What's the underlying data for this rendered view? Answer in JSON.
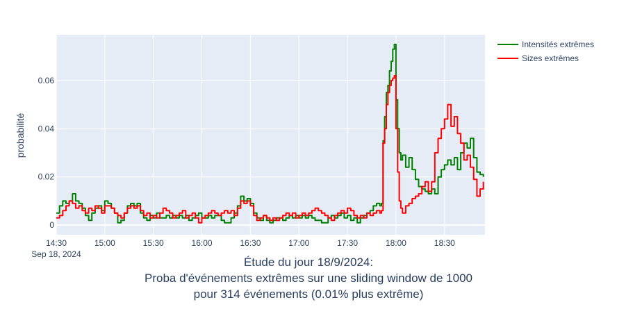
{
  "chart_data": {
    "type": "line",
    "line_shape": "step",
    "title_lines": [
      "Étude du jour 18/9/2024:",
      "Proba d'événements extrêmes sur une sliding window de 1000",
      "pour 314 événements (0.01% plus extrême)"
    ],
    "xlabel": "",
    "ylabel": "probabilité",
    "x_ticks": [
      {
        "x": "14:30",
        "label": "14:30"
      },
      {
        "x": "15:00",
        "label": "15:00"
      },
      {
        "x": "15:30",
        "label": "15:30"
      },
      {
        "x": "16:00",
        "label": "16:00"
      },
      {
        "x": "16:30",
        "label": "16:30"
      },
      {
        "x": "17:00",
        "label": "17:00"
      },
      {
        "x": "17:30",
        "label": "17:30"
      },
      {
        "x": "18:00",
        "label": "18:00"
      },
      {
        "x": "18:30",
        "label": "18:30"
      }
    ],
    "x_subtitle": "Sep 18, 2024",
    "xlim": [
      "14:30",
      "18:55"
    ],
    "y_ticks": [
      {
        "y": 0,
        "label": "0"
      },
      {
        "y": 0.02,
        "label": "0.02"
      },
      {
        "y": 0.04,
        "label": "0.04"
      },
      {
        "y": 0.06,
        "label": "0.06"
      }
    ],
    "ylim": [
      -0.004,
      0.079
    ],
    "grid": true,
    "legend_position": "top-right",
    "series": [
      {
        "name": "Intensités extrêmes",
        "color": "#008000",
        "points": [
          [
            "14:30",
            0.005
          ],
          [
            "14:32",
            0.008
          ],
          [
            "14:34",
            0.01
          ],
          [
            "14:36",
            0.009
          ],
          [
            "14:38",
            0.01
          ],
          [
            "14:40",
            0.013
          ],
          [
            "14:42",
            0.01
          ],
          [
            "14:44",
            0.009
          ],
          [
            "14:46",
            0.007
          ],
          [
            "14:48",
            0.004
          ],
          [
            "14:50",
            0.002
          ],
          [
            "14:52",
            0.005
          ],
          [
            "14:54",
            0.007
          ],
          [
            "14:56",
            0.008
          ],
          [
            "14:58",
            0.006
          ],
          [
            "15:00",
            0.01
          ],
          [
            "15:02",
            0.009
          ],
          [
            "15:04",
            0.007
          ],
          [
            "15:06",
            0.005
          ],
          [
            "15:08",
            0.001
          ],
          [
            "15:10",
            0.002
          ],
          [
            "15:12",
            0.005
          ],
          [
            "15:14",
            0.008
          ],
          [
            "15:16",
            0.009
          ],
          [
            "15:18",
            0.008
          ],
          [
            "15:20",
            0.009
          ],
          [
            "15:22",
            0.005
          ],
          [
            "15:24",
            0.003
          ],
          [
            "15:26",
            0.002
          ],
          [
            "15:28",
            0.004
          ],
          [
            "15:30",
            0.003
          ],
          [
            "15:32",
            0.005
          ],
          [
            "15:34",
            0.003
          ],
          [
            "15:36",
            0.003
          ],
          [
            "15:38",
            0.004
          ],
          [
            "15:40",
            0.003
          ],
          [
            "15:42",
            0.004
          ],
          [
            "15:44",
            0.003
          ],
          [
            "15:46",
            0.004
          ],
          [
            "15:48",
            0.003
          ],
          [
            "15:50",
            0.004
          ],
          [
            "15:52",
            0.002
          ],
          [
            "15:54",
            0.003
          ],
          [
            "15:56",
            0.004
          ],
          [
            "15:58",
            0.005
          ],
          [
            "16:00",
            0.003
          ],
          [
            "16:02",
            0.003
          ],
          [
            "16:04",
            0.004
          ],
          [
            "16:06",
            0.003
          ],
          [
            "16:08",
            0.004
          ],
          [
            "16:10",
            0.004
          ],
          [
            "16:12",
            0.002
          ],
          [
            "16:14",
            0.001
          ],
          [
            "16:16",
            0.001
          ],
          [
            "16:18",
            0.003
          ],
          [
            "16:20",
            0.005
          ],
          [
            "16:22",
            0.008
          ],
          [
            "16:24",
            0.012
          ],
          [
            "16:26",
            0.01
          ],
          [
            "16:28",
            0.011
          ],
          [
            "16:30",
            0.009
          ],
          [
            "16:32",
            0.005
          ],
          [
            "16:34",
            0.003
          ],
          [
            "16:36",
            0.002
          ],
          [
            "16:38",
            0.004
          ],
          [
            "16:40",
            0.002
          ],
          [
            "16:42",
            0.001
          ],
          [
            "16:44",
            0.002
          ],
          [
            "16:46",
            0.003
          ],
          [
            "16:48",
            0.003
          ],
          [
            "16:50",
            0.002
          ],
          [
            "16:52",
            0.003
          ],
          [
            "16:54",
            0.004
          ],
          [
            "16:56",
            0.003
          ],
          [
            "16:58",
            0.004
          ],
          [
            "17:00",
            0.003
          ],
          [
            "17:02",
            0.004
          ],
          [
            "17:04",
            0.003
          ],
          [
            "17:06",
            0.004
          ],
          [
            "17:08",
            0.003
          ],
          [
            "17:10",
            0.002
          ],
          [
            "17:12",
            0.002
          ],
          [
            "17:14",
            0.001
          ],
          [
            "17:16",
            0.001
          ],
          [
            "17:18",
            0.003
          ],
          [
            "17:20",
            0.004
          ],
          [
            "17:22",
            0.003
          ],
          [
            "17:24",
            0.004
          ],
          [
            "17:26",
            0.005
          ],
          [
            "17:28",
            0.003
          ],
          [
            "17:30",
            0.004
          ],
          [
            "17:32",
            0.002
          ],
          [
            "17:34",
            0.003
          ],
          [
            "17:36",
            0.001
          ],
          [
            "17:38",
            0.003
          ],
          [
            "17:40",
            0.004
          ],
          [
            "17:42",
            0.005
          ],
          [
            "17:44",
            0.006
          ],
          [
            "17:46",
            0.008
          ],
          [
            "17:48",
            0.009
          ],
          [
            "17:50",
            0.008
          ],
          [
            "17:51",
            0.009
          ],
          [
            "17:52",
            0.035
          ],
          [
            "17:53",
            0.045
          ],
          [
            "17:54",
            0.055
          ],
          [
            "17:55",
            0.058
          ],
          [
            "17:56",
            0.064
          ],
          [
            "17:57",
            0.068
          ],
          [
            "17:58",
            0.073
          ],
          [
            "17:59",
            0.075
          ],
          [
            "18:00",
            0.052
          ],
          [
            "18:01",
            0.04
          ],
          [
            "18:02",
            0.03
          ],
          [
            "18:03",
            0.027
          ],
          [
            "18:04",
            0.029
          ],
          [
            "18:06",
            0.024
          ],
          [
            "18:08",
            0.028
          ],
          [
            "18:10",
            0.023
          ],
          [
            "18:12",
            0.019
          ],
          [
            "18:14",
            0.016
          ],
          [
            "18:16",
            0.015
          ],
          [
            "18:18",
            0.014
          ],
          [
            "18:20",
            0.013
          ],
          [
            "18:22",
            0.015
          ],
          [
            "18:24",
            0.013
          ],
          [
            "18:26",
            0.02
          ],
          [
            "18:28",
            0.023
          ],
          [
            "18:30",
            0.025
          ],
          [
            "18:32",
            0.027
          ],
          [
            "18:34",
            0.025
          ],
          [
            "18:36",
            0.028
          ],
          [
            "18:38",
            0.023
          ],
          [
            "18:40",
            0.03
          ],
          [
            "18:42",
            0.034
          ],
          [
            "18:44",
            0.032
          ],
          [
            "18:46",
            0.036
          ],
          [
            "18:48",
            0.028
          ],
          [
            "18:50",
            0.022
          ],
          [
            "18:52",
            0.021
          ],
          [
            "18:54",
            0.02
          ]
        ]
      },
      {
        "name": "Sizes extrêmes",
        "color": "#ff0000",
        "points": [
          [
            "14:30",
            0.003
          ],
          [
            "14:32",
            0.004
          ],
          [
            "14:34",
            0.006
          ],
          [
            "14:36",
            0.008
          ],
          [
            "14:38",
            0.01
          ],
          [
            "14:40",
            0.009
          ],
          [
            "14:42",
            0.007
          ],
          [
            "14:44",
            0.008
          ],
          [
            "14:46",
            0.006
          ],
          [
            "14:48",
            0.005
          ],
          [
            "14:50",
            0.007
          ],
          [
            "14:52",
            0.006
          ],
          [
            "14:54",
            0.008
          ],
          [
            "14:56",
            0.007
          ],
          [
            "14:58",
            0.005
          ],
          [
            "15:00",
            0.008
          ],
          [
            "15:02",
            0.008
          ],
          [
            "15:04",
            0.007
          ],
          [
            "15:06",
            0.005
          ],
          [
            "15:08",
            0.004
          ],
          [
            "15:10",
            0.003
          ],
          [
            "15:12",
            0.005
          ],
          [
            "15:14",
            0.007
          ],
          [
            "15:16",
            0.008
          ],
          [
            "15:18",
            0.007
          ],
          [
            "15:20",
            0.008
          ],
          [
            "15:22",
            0.006
          ],
          [
            "15:24",
            0.004
          ],
          [
            "15:26",
            0.005
          ],
          [
            "15:28",
            0.003
          ],
          [
            "15:30",
            0.004
          ],
          [
            "15:32",
            0.003
          ],
          [
            "15:34",
            0.005
          ],
          [
            "15:36",
            0.007
          ],
          [
            "15:38",
            0.006
          ],
          [
            "15:40",
            0.005
          ],
          [
            "15:42",
            0.003
          ],
          [
            "15:44",
            0.004
          ],
          [
            "15:46",
            0.005
          ],
          [
            "15:48",
            0.006
          ],
          [
            "15:50",
            0.003
          ],
          [
            "15:52",
            0.004
          ],
          [
            "15:54",
            0.005
          ],
          [
            "15:56",
            0.003
          ],
          [
            "15:58",
            0.001
          ],
          [
            "16:00",
            0.003
          ],
          [
            "16:02",
            0.004
          ],
          [
            "16:04",
            0.005
          ],
          [
            "16:06",
            0.006
          ],
          [
            "16:08",
            0.005
          ],
          [
            "16:10",
            0.004
          ],
          [
            "16:12",
            0.005
          ],
          [
            "16:14",
            0.006
          ],
          [
            "16:16",
            0.005
          ],
          [
            "16:18",
            0.006
          ],
          [
            "16:20",
            0.004
          ],
          [
            "16:22",
            0.007
          ],
          [
            "16:24",
            0.01
          ],
          [
            "16:26",
            0.009
          ],
          [
            "16:28",
            0.01
          ],
          [
            "16:30",
            0.008
          ],
          [
            "16:32",
            0.004
          ],
          [
            "16:34",
            0.002
          ],
          [
            "16:36",
            0.003
          ],
          [
            "16:38",
            0.004
          ],
          [
            "16:40",
            0.003
          ],
          [
            "16:42",
            0.002
          ],
          [
            "16:44",
            0.003
          ],
          [
            "16:46",
            0.002
          ],
          [
            "16:48",
            0.003
          ],
          [
            "16:50",
            0.004
          ],
          [
            "16:52",
            0.005
          ],
          [
            "16:54",
            0.004
          ],
          [
            "16:56",
            0.005
          ],
          [
            "16:58",
            0.003
          ],
          [
            "17:00",
            0.004
          ],
          [
            "17:02",
            0.005
          ],
          [
            "17:04",
            0.004
          ],
          [
            "17:06",
            0.005
          ],
          [
            "17:08",
            0.006
          ],
          [
            "17:10",
            0.007
          ],
          [
            "17:12",
            0.006
          ],
          [
            "17:14",
            0.005
          ],
          [
            "17:16",
            0.004
          ],
          [
            "17:18",
            0.003
          ],
          [
            "17:20",
            0.002
          ],
          [
            "17:22",
            0.004
          ],
          [
            "17:24",
            0.005
          ],
          [
            "17:26",
            0.006
          ],
          [
            "17:28",
            0.005
          ],
          [
            "17:30",
            0.007
          ],
          [
            "17:32",
            0.006
          ],
          [
            "17:34",
            0.004
          ],
          [
            "17:36",
            0.003
          ],
          [
            "17:38",
            0.004
          ],
          [
            "17:40",
            0.003
          ],
          [
            "17:42",
            0.005
          ],
          [
            "17:44",
            0.004
          ],
          [
            "17:46",
            0.005
          ],
          [
            "17:48",
            0.006
          ],
          [
            "17:50",
            0.005
          ],
          [
            "17:51",
            0.006
          ],
          [
            "17:52",
            0.034
          ],
          [
            "17:53",
            0.04
          ],
          [
            "17:54",
            0.05
          ],
          [
            "17:55",
            0.055
          ],
          [
            "17:56",
            0.058
          ],
          [
            "17:57",
            0.06
          ],
          [
            "17:58",
            0.061
          ],
          [
            "17:59",
            0.062
          ],
          [
            "18:00",
            0.04
          ],
          [
            "18:01",
            0.022
          ],
          [
            "18:02",
            0.01
          ],
          [
            "18:03",
            0.007
          ],
          [
            "18:04",
            0.005
          ],
          [
            "18:06",
            0.008
          ],
          [
            "18:08",
            0.009
          ],
          [
            "18:10",
            0.011
          ],
          [
            "18:12",
            0.012
          ],
          [
            "18:14",
            0.013
          ],
          [
            "18:16",
            0.016
          ],
          [
            "18:18",
            0.018
          ],
          [
            "18:20",
            0.014
          ],
          [
            "18:22",
            0.018
          ],
          [
            "18:24",
            0.03
          ],
          [
            "18:26",
            0.036
          ],
          [
            "18:28",
            0.04
          ],
          [
            "18:30",
            0.044
          ],
          [
            "18:32",
            0.05
          ],
          [
            "18:34",
            0.041
          ],
          [
            "18:36",
            0.045
          ],
          [
            "18:38",
            0.038
          ],
          [
            "18:40",
            0.034
          ],
          [
            "18:42",
            0.027
          ],
          [
            "18:44",
            0.029
          ],
          [
            "18:46",
            0.024
          ],
          [
            "18:48",
            0.019
          ],
          [
            "18:50",
            0.012
          ],
          [
            "18:52",
            0.015
          ],
          [
            "18:54",
            0.018
          ]
        ]
      }
    ]
  }
}
